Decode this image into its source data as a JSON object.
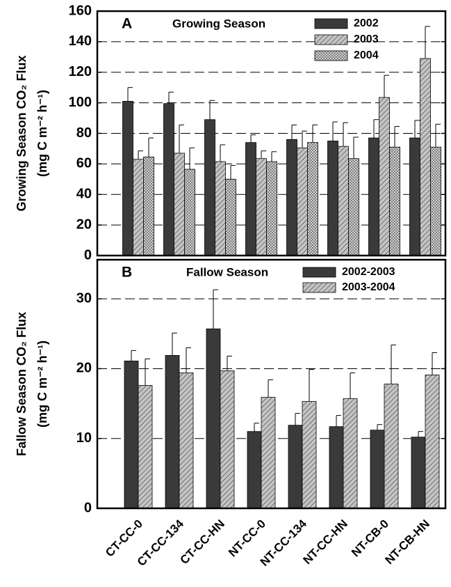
{
  "chart_data": [
    {
      "type": "bar",
      "panel_label": "A",
      "title": "Growing Season",
      "ylabel": [
        "Growing Season CO₂ Flux",
        "(mg C m⁻² h⁻¹)"
      ],
      "categories": [
        null,
        null,
        null,
        null,
        null,
        null,
        null,
        null
      ],
      "series": [
        {
          "name": "2002",
          "color": "#3a3a3a",
          "pattern": "solid",
          "values": [
            101,
            99.5,
            89,
            74,
            76,
            75,
            77,
            77
          ],
          "errors": [
            9,
            7.5,
            12.5,
            5,
            9.5,
            12.5,
            12,
            11.5
          ]
        },
        {
          "name": "2003",
          "color": "#b8b8b8",
          "pattern": "diagonal",
          "values": [
            63,
            67,
            61.5,
            63.5,
            70.5,
            71.5,
            103.5,
            129
          ],
          "errors": [
            5.5,
            18.5,
            11,
            5,
            11,
            15.5,
            14.5,
            21
          ]
        },
        {
          "name": "2004",
          "color": "#8a8a8a",
          "pattern": "crosshatch",
          "values": [
            64.5,
            56.5,
            50,
            61.5,
            74,
            63.5,
            71,
            71
          ],
          "errors": [
            12.5,
            14,
            9,
            6.5,
            11.5,
            14,
            13.5,
            15
          ]
        }
      ],
      "ylim": [
        0,
        160
      ],
      "yticks": [
        0,
        20,
        40,
        60,
        80,
        100,
        120,
        140,
        160
      ],
      "grid": true,
      "legend": "upper right"
    },
    {
      "type": "bar",
      "panel_label": "B",
      "title": "Fallow Season",
      "ylabel": [
        "Fallow Season CO₂ Flux",
        "(mg C m⁻² h⁻¹)"
      ],
      "categories": [
        "CT-CC-0",
        "CT-CC-134",
        "CT-CC-HN",
        "NT-CC-0",
        "NT-CC-134",
        "NT-CC-HN",
        "NT-CB-0",
        "NT-CB-HN"
      ],
      "series": [
        {
          "name": "2002-2003",
          "color": "#3a3a3a",
          "pattern": "solid",
          "values": [
            21.1,
            21.9,
            25.7,
            11.0,
            11.9,
            11.7,
            11.2,
            10.2
          ],
          "errors": [
            1.5,
            3.2,
            5.6,
            1.2,
            1.7,
            1.6,
            0.8,
            0.8
          ]
        },
        {
          "name": "2003-2004",
          "color": "#b8b8b8",
          "pattern": "diagonal",
          "values": [
            17.6,
            19.4,
            19.7,
            15.9,
            15.3,
            15.7,
            17.8,
            19.1
          ],
          "errors": [
            3.8,
            3.6,
            2.1,
            2.5,
            4.6,
            3.7,
            5.6,
            3.2
          ]
        }
      ],
      "ylim": [
        0,
        35.6
      ],
      "yticks": [
        0,
        10,
        20,
        30
      ],
      "grid": true,
      "legend": "upper right"
    }
  ]
}
